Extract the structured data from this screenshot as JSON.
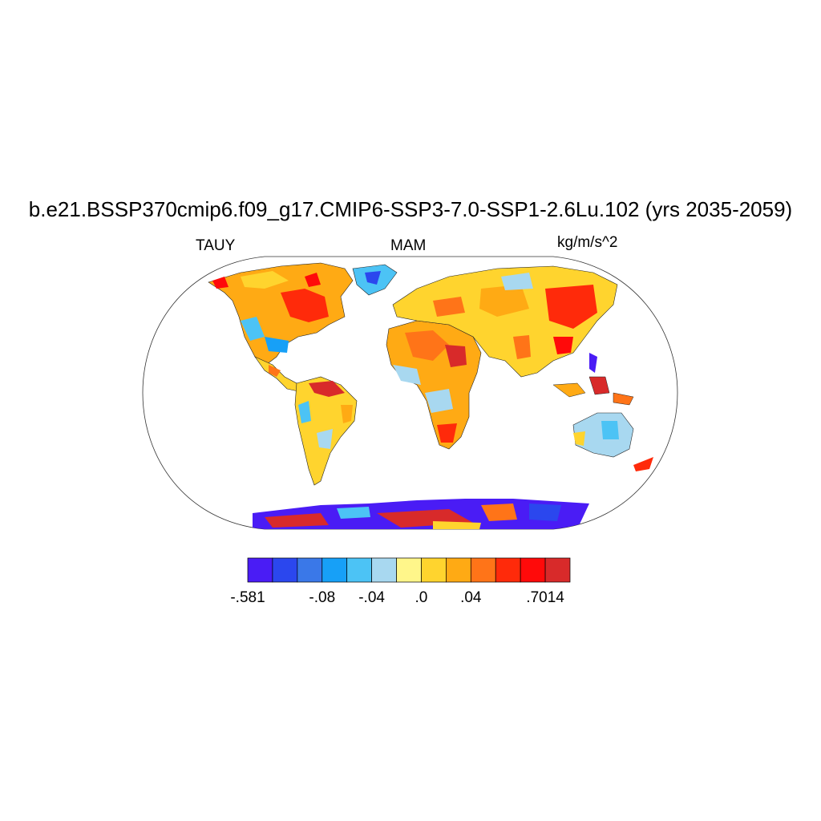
{
  "title": "b.e21.BSSP370cmip6.f09_g17.CMIP6-SSP3-7.0-SSP1-2.6Lu.102 (yrs 2035-2059)",
  "left_string": "TAUY",
  "center_string": "MAM",
  "right_string": "kg/m/s^2",
  "colorbar": {
    "colors": [
      "#4a1cf5",
      "#2b47ee",
      "#3a78e8",
      "#17a0f7",
      "#4cc3f5",
      "#a8d8f0",
      "#fff68a",
      "#ffd42e",
      "#ffaa14",
      "#ff7418",
      "#ff2a0a",
      "#ff0a0a",
      "#d82a2a"
    ],
    "labels": [
      {
        "text": "-.581",
        "boundary": 0
      },
      {
        "text": "-.08",
        "boundary": 3
      },
      {
        "text": "-.04",
        "boundary": 5
      },
      {
        "text": ".0",
        "boundary": 7
      },
      {
        "text": ".04",
        "boundary": 9
      },
      {
        "text": ".7014",
        "boundary": 12
      }
    ]
  }
}
